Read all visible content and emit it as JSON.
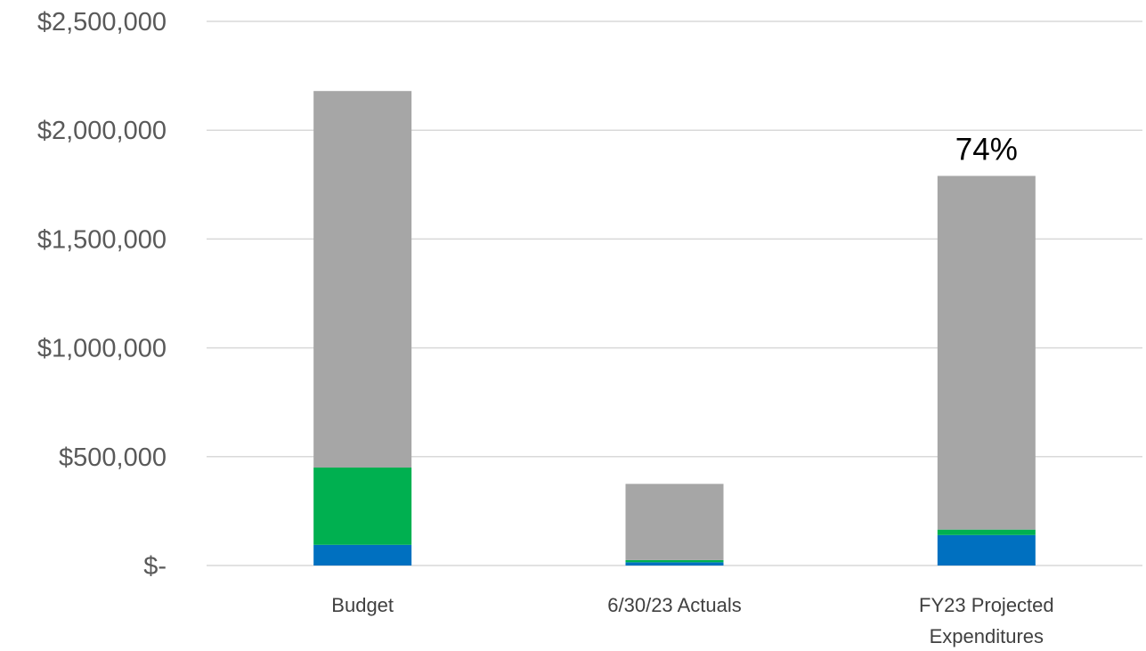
{
  "chart_data": {
    "type": "bar",
    "stacked": true,
    "categories": [
      "Budget",
      "6/30/23 Actuals",
      "FY23 Projected Expenditures"
    ],
    "category_lines": [
      [
        "Budget"
      ],
      [
        "6/30/23 Actuals"
      ],
      [
        "FY23 Projected",
        "Expenditures"
      ]
    ],
    "series": [
      {
        "values": [
          95000,
          15000,
          140000
        ],
        "color": "#0070c0"
      },
      {
        "values": [
          355000,
          10000,
          25000
        ],
        "color": "#00b050"
      },
      {
        "values": [
          1730000,
          350000,
          1625000
        ],
        "color": "#a6a6a6"
      }
    ],
    "ylim": [
      0,
      2500000
    ],
    "yticks": [
      0,
      500000,
      1000000,
      1500000,
      2000000,
      2500000
    ],
    "ytick_labels": [
      "$-",
      "$500,000",
      "$1,000,000",
      "$1,500,000",
      "$2,000,000",
      "$2,500,000"
    ],
    "data_labels": [
      {
        "category_index": 2,
        "text": "74%"
      }
    ],
    "grid": true,
    "legend": false
  }
}
